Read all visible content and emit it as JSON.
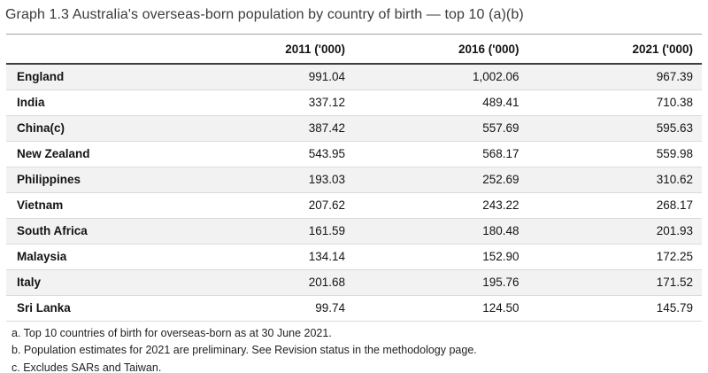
{
  "title": "Graph 1.3 Australia's overseas-born population by country of birth — top 10 (a)(b)",
  "table": {
    "columns": [
      "2011 ('000)",
      "2016 ('000)",
      "2021 ('000)"
    ],
    "rows": [
      {
        "country": "England",
        "values": [
          "991.04",
          "1,002.06",
          "967.39"
        ]
      },
      {
        "country": "India",
        "values": [
          "337.12",
          "489.41",
          "710.38"
        ]
      },
      {
        "country": "China(c)",
        "values": [
          "387.42",
          "557.69",
          "595.63"
        ]
      },
      {
        "country": "New Zealand",
        "values": [
          "543.95",
          "568.17",
          "559.98"
        ]
      },
      {
        "country": "Philippines",
        "values": [
          "193.03",
          "252.69",
          "310.62"
        ]
      },
      {
        "country": "Vietnam",
        "values": [
          "207.62",
          "243.22",
          "268.17"
        ]
      },
      {
        "country": "South Africa",
        "values": [
          "161.59",
          "180.48",
          "201.93"
        ]
      },
      {
        "country": "Malaysia",
        "values": [
          "134.14",
          "152.90",
          "172.25"
        ]
      },
      {
        "country": "Italy",
        "values": [
          "201.68",
          "195.76",
          "171.52"
        ]
      },
      {
        "country": "Sri Lanka",
        "values": [
          "99.74",
          "124.50",
          "145.79"
        ]
      }
    ]
  },
  "footnotes": [
    "a. Top 10 countries of birth for overseas-born as at 30 June 2021.",
    "b. Population estimates for 2021 are preliminary. See Revision status in the methodology page.",
    "c. Excludes SARs and Taiwan."
  ],
  "colors": {
    "row_alt_background": "#f2f2f2",
    "header_rule": "#3d3d3d",
    "title_rule": "#a3a3a3",
    "row_rule": "#dbdbdb",
    "text": "#141414"
  },
  "chart_data": {
    "type": "table",
    "title": "Graph 1.3 Australia's overseas-born population by country of birth — top 10 (a)(b)",
    "categories": [
      "England",
      "India",
      "China(c)",
      "New Zealand",
      "Philippines",
      "Vietnam",
      "South Africa",
      "Malaysia",
      "Italy",
      "Sri Lanka"
    ],
    "series": [
      {
        "name": "2011 ('000)",
        "values": [
          991.04,
          337.12,
          387.42,
          543.95,
          193.03,
          207.62,
          161.59,
          134.14,
          201.68,
          99.74
        ]
      },
      {
        "name": "2016 ('000)",
        "values": [
          1002.06,
          489.41,
          557.69,
          568.17,
          252.69,
          243.22,
          180.48,
          152.9,
          195.76,
          124.5
        ]
      },
      {
        "name": "2021 ('000)",
        "values": [
          967.39,
          710.38,
          595.63,
          559.98,
          310.62,
          268.17,
          201.93,
          172.25,
          171.52,
          145.79
        ]
      }
    ],
    "footnotes": [
      "a. Top 10 countries of birth for overseas-born as at 30 June 2021.",
      "b. Population estimates for 2021 are preliminary. See Revision status in the methodology page.",
      "c. Excludes SARs and Taiwan."
    ]
  }
}
